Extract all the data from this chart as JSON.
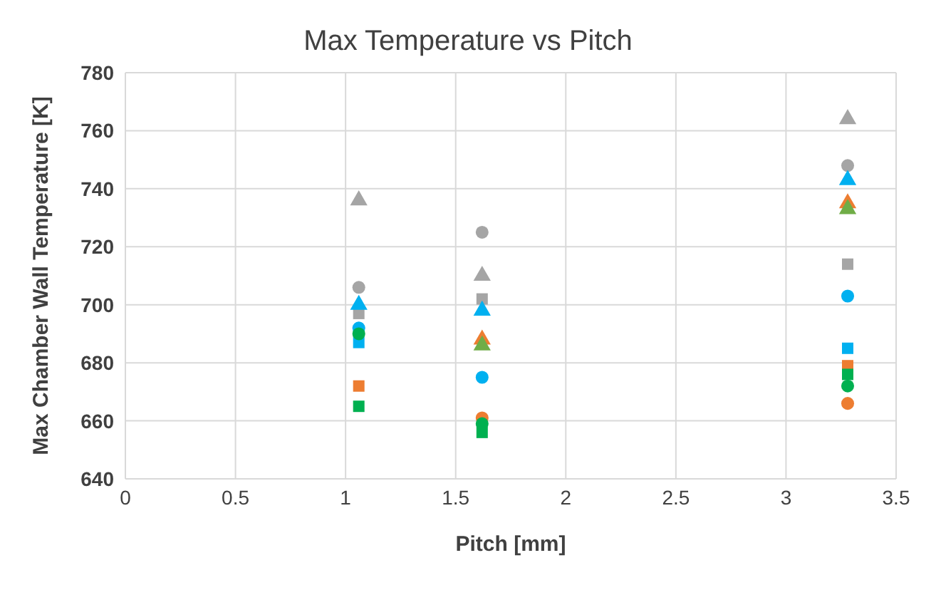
{
  "chart_data": {
    "type": "scatter",
    "title": "Max Temperature vs Pitch",
    "xlabel": "Pitch [mm]",
    "ylabel": "Max Chamber Wall Temperature [K]",
    "x": [
      1.06,
      1.62,
      3.28
    ],
    "series": [
      {
        "color": "#a5a5a5",
        "marker": "triangle",
        "values": [
          736,
          710,
          764
        ]
      },
      {
        "color": "#a5a5a5",
        "marker": "circle",
        "values": [
          706,
          725,
          748
        ]
      },
      {
        "color": "#a5a5a5",
        "marker": "square",
        "values": [
          697,
          702,
          714
        ]
      },
      {
        "color": "#ed7d31",
        "marker": "triangle",
        "values": [
          null,
          688,
          735
        ]
      },
      {
        "color": "#70ad47",
        "marker": "triangle",
        "values": [
          null,
          686,
          733
        ]
      },
      {
        "color": "#00b0f0",
        "marker": "triangle",
        "values": [
          700,
          698,
          743
        ]
      },
      {
        "color": "#00b0f0",
        "marker": "square",
        "values": [
          687,
          null,
          685
        ]
      },
      {
        "color": "#00b0f0",
        "marker": "circle",
        "values": [
          692,
          675,
          703
        ]
      },
      {
        "color": "#ed7d31",
        "marker": "square",
        "values": [
          672,
          null,
          679
        ]
      },
      {
        "color": "#ed7d31",
        "marker": "circle",
        "values": [
          null,
          661,
          666
        ]
      },
      {
        "color": "#00b050",
        "marker": "circle",
        "values": [
          690,
          659,
          672
        ]
      },
      {
        "color": "#00b050",
        "marker": "square",
        "values": [
          665,
          656,
          676
        ]
      }
    ],
    "xlim": [
      0,
      3.5
    ],
    "xticks": [
      0,
      0.5,
      1,
      1.5,
      2,
      2.5,
      3,
      3.5
    ],
    "ylim": [
      640,
      780
    ],
    "yticks": [
      640,
      660,
      680,
      700,
      720,
      740,
      760,
      780
    ],
    "grid": true
  }
}
